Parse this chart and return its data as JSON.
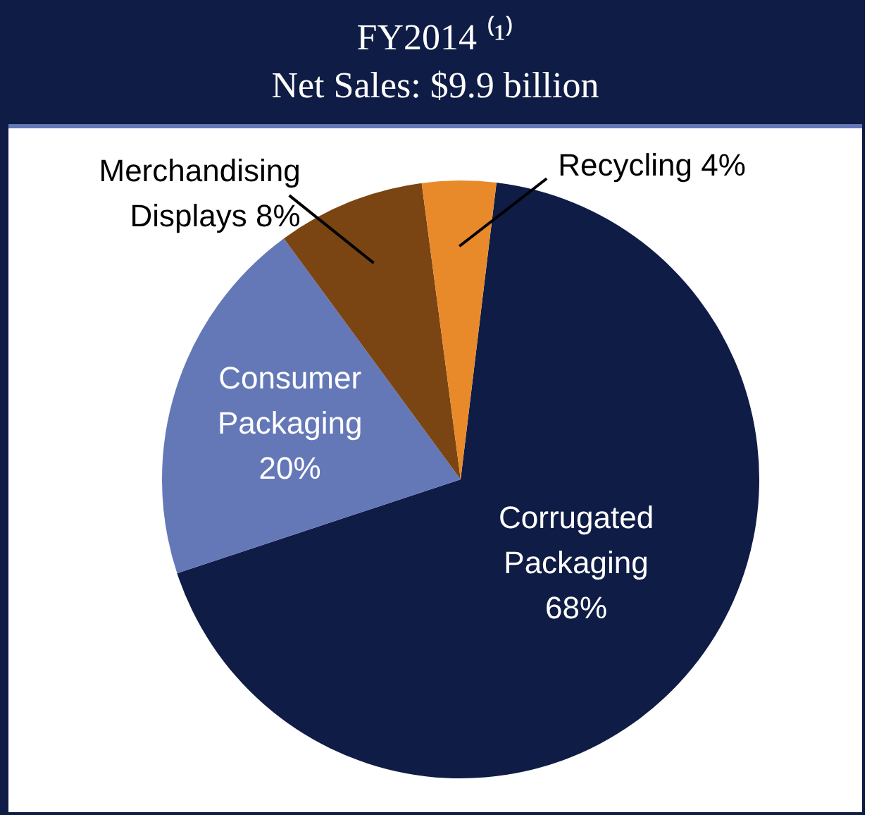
{
  "chart_data": {
    "type": "pie",
    "title": "FY2014 ⁽¹⁾",
    "subtitle": "Net Sales: $9.9 billion",
    "categories": [
      "Corrugated Packaging",
      "Consumer Packaging",
      "Merchandising Displays",
      "Recycling"
    ],
    "values": [
      68,
      20,
      8,
      4
    ],
    "value_labels": [
      "68%",
      "20%",
      "8%",
      "4%"
    ],
    "colors": [
      "#0f1c45",
      "#6478b8",
      "#7a4512",
      "#e8892a"
    ],
    "legend": false
  }
}
